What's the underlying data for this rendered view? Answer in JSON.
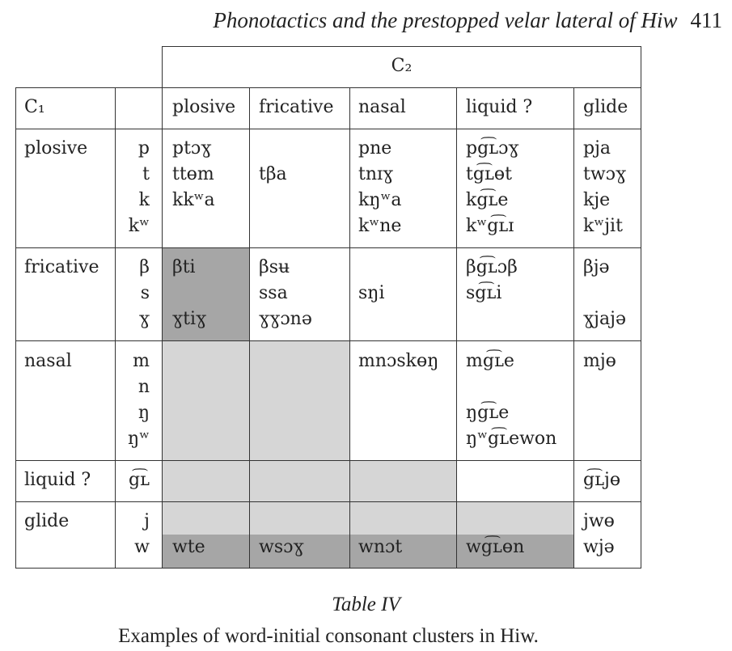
{
  "header": {
    "title": "Phonotactics and the prestopped velar lateral of Hiw",
    "page_number": "411"
  },
  "table": {
    "c2_label": "C₂",
    "c1_label": "C₁",
    "c2_columns": [
      "plosive",
      "fricative",
      "nasal",
      "liquid ?",
      "glide"
    ],
    "rows": [
      {
        "category": "plosive",
        "consonants": [
          "p",
          "t",
          "k",
          "kʷ"
        ],
        "cells": [
          [
            "ptɔɣ",
            "ttɵm",
            "kkʷa"
          ],
          [
            "",
            "tβa"
          ],
          [
            "pne",
            "tnɪɣ",
            "kŋʷa",
            "kʷne"
          ],
          [
            "pg͡ʟɔɣ",
            "tg͡ʟɵt",
            "kg͡ʟe",
            "kʷg͡ʟɪ"
          ],
          [
            "pja",
            "twɔɣ",
            "kje",
            "kʷjit"
          ]
        ]
      },
      {
        "category": "fricative",
        "consonants": [
          "β",
          "s",
          "ɣ"
        ],
        "cells": [
          [
            "βti",
            "",
            "ɣtiɣ"
          ],
          [
            "βsʉ",
            "ssa",
            "ɣɣɔnə"
          ],
          [
            "",
            "sŋi"
          ],
          [
            "βg͡ʟɔβ",
            "sg͡ʟi"
          ],
          [
            "βjə",
            "",
            "ɣjajə"
          ]
        ]
      },
      {
        "category": "nasal",
        "consonants": [
          "m",
          "n",
          "ŋ",
          "ŋʷ"
        ],
        "cells": [
          [],
          [],
          [
            "mnɔskɵŋ"
          ],
          [
            "mg͡ʟe",
            "",
            "ŋg͡ʟe",
            "ŋʷg͡ʟewon"
          ],
          [
            "mjɵ"
          ]
        ]
      },
      {
        "category": "liquid ?",
        "consonants": [
          "g͡ʟ"
        ],
        "cells": [
          [],
          [],
          [],
          [],
          [
            "g͡ʟjɵ"
          ]
        ]
      },
      {
        "category": "glide",
        "consonants": [
          "j",
          "w"
        ],
        "cells": [
          [
            "",
            "wte"
          ],
          [
            "",
            "wsɔɣ"
          ],
          [
            "",
            "wnɔt"
          ],
          [
            "",
            "wg͡ʟɵn"
          ],
          [
            "jwɵ",
            "wjə"
          ]
        ]
      }
    ]
  },
  "caption": {
    "label": "Table IV",
    "text": "Examples of word-initial consonant clusters in Hiw."
  },
  "colors": {
    "dark_shade": "#a6a6a6",
    "light_shade": "#d6d6d6",
    "rule": "#333333",
    "text": "#222222"
  }
}
